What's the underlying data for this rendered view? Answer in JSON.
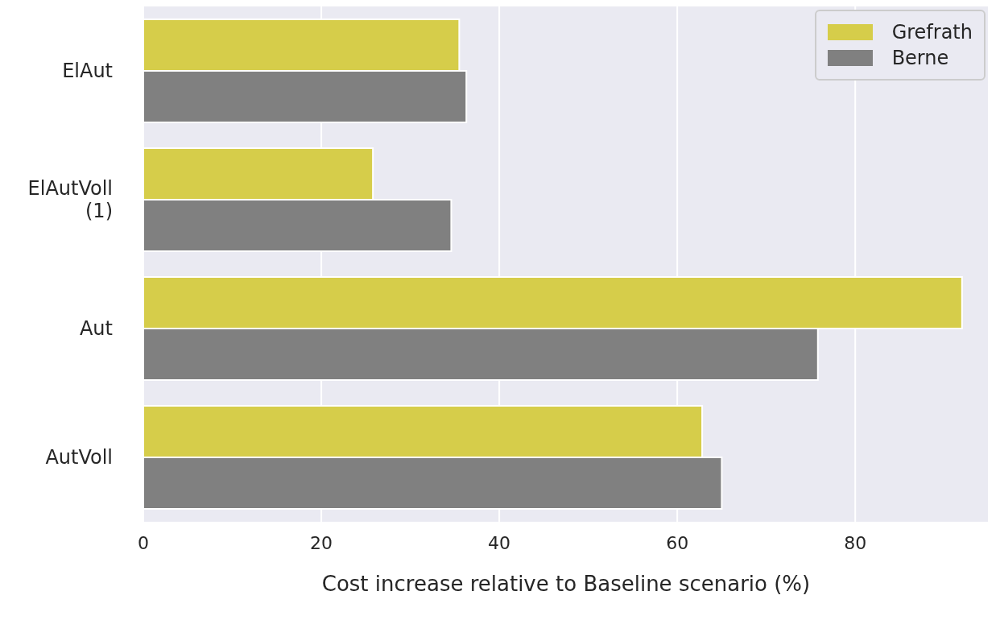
{
  "chart_data": {
    "type": "bar",
    "orientation": "horizontal",
    "xlabel": "Cost increase relative to Baseline scenario (%)",
    "categories": [
      "ElAut",
      "ElAutVoll\n(1)",
      "Aut",
      "AutVoll"
    ],
    "series": [
      {
        "name": "Grefrath",
        "color": "#d6cd4a",
        "values": [
          35.5,
          25.8,
          92.0,
          62.8
        ]
      },
      {
        "name": "Berne",
        "color": "#808080",
        "values": [
          36.3,
          34.6,
          75.8,
          65.0
        ]
      }
    ],
    "xlim": [
      0,
      95
    ],
    "xticks": [
      0,
      20,
      40,
      60,
      80
    ],
    "grid": "x",
    "legend": "top right"
  }
}
